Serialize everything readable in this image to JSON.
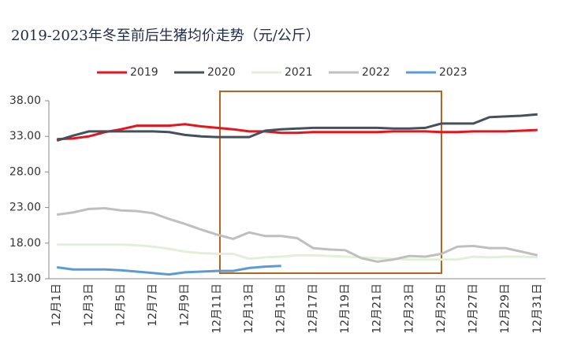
{
  "chart_data": {
    "type": "line",
    "title": "2019-2023年冬至前后生猪均价走势（元/公斤）",
    "categories": [
      "12月1日",
      null,
      "12月3日",
      null,
      "12月5日",
      null,
      "12月7日",
      null,
      "12月9日",
      null,
      "12月11日",
      null,
      "12月13日",
      null,
      "12月15日",
      null,
      "12月17日",
      null,
      "12月19日",
      null,
      "12月21日",
      null,
      "12月23日",
      null,
      "12月25日",
      null,
      "12月27日",
      null,
      "12月29日",
      null,
      "12月31日"
    ],
    "series": [
      {
        "name": "2019",
        "color": "#e8141b",
        "values": [
          32.6,
          32.7,
          33.0,
          33.6,
          34.0,
          34.5,
          34.5,
          34.5,
          34.7,
          34.4,
          34.2,
          34.0,
          33.7,
          33.7,
          33.5,
          33.5,
          33.6,
          33.6,
          33.6,
          33.6,
          33.6,
          33.7,
          33.7,
          33.7,
          33.6,
          33.6,
          33.7,
          33.7,
          33.7,
          33.8,
          33.9
        ]
      },
      {
        "name": "2020",
        "color": "#44505e",
        "values": [
          32.4,
          33.1,
          33.7,
          33.7,
          33.7,
          33.7,
          33.7,
          33.6,
          33.2,
          33.0,
          32.9,
          32.9,
          32.9,
          33.8,
          34.0,
          34.1,
          34.2,
          34.2,
          34.2,
          34.2,
          34.2,
          34.1,
          34.1,
          34.2,
          34.8,
          34.8,
          34.8,
          35.7,
          35.8,
          35.9,
          36.1
        ]
      },
      {
        "name": "2021",
        "color": "#e2efd9",
        "values": [
          17.8,
          17.8,
          17.8,
          17.8,
          17.8,
          17.7,
          17.5,
          17.2,
          16.8,
          16.6,
          16.5,
          16.5,
          15.8,
          16.0,
          16.1,
          16.3,
          16.3,
          16.2,
          16.1,
          16.0,
          15.9,
          15.8,
          15.7,
          15.7,
          15.7,
          15.7,
          16.1,
          16.0,
          16.1,
          16.1,
          16.0
        ]
      },
      {
        "name": "2022",
        "color": "#bfbfbf",
        "values": [
          22.0,
          22.3,
          22.8,
          22.9,
          22.6,
          22.5,
          22.2,
          21.4,
          20.7,
          19.9,
          19.2,
          18.6,
          19.5,
          19.0,
          19.0,
          18.7,
          17.3,
          17.1,
          17.0,
          15.9,
          15.4,
          15.7,
          16.2,
          16.1,
          16.5,
          17.5,
          17.6,
          17.3,
          17.3,
          16.8,
          16.3
        ]
      },
      {
        "name": "2023",
        "color": "#5b9bd5",
        "values": [
          14.6,
          14.3,
          14.3,
          14.3,
          14.2,
          14.0,
          13.8,
          13.6,
          13.9,
          14.0,
          14.1,
          14.1,
          14.5,
          14.7,
          14.8,
          null,
          null,
          null,
          null,
          null,
          null,
          null,
          null,
          null,
          null,
          null,
          null,
          null,
          null,
          null,
          null
        ]
      }
    ],
    "ylim": [
      13,
      38
    ],
    "yticks": [
      {
        "value": 13,
        "label": "13.00"
      },
      {
        "value": 18,
        "label": "18.00"
      },
      {
        "value": 23,
        "label": "23.00"
      },
      {
        "value": 28,
        "label": "28.00"
      },
      {
        "value": 33,
        "label": "33.00"
      },
      {
        "value": 38,
        "label": "38.00"
      }
    ],
    "legend": "top"
  }
}
